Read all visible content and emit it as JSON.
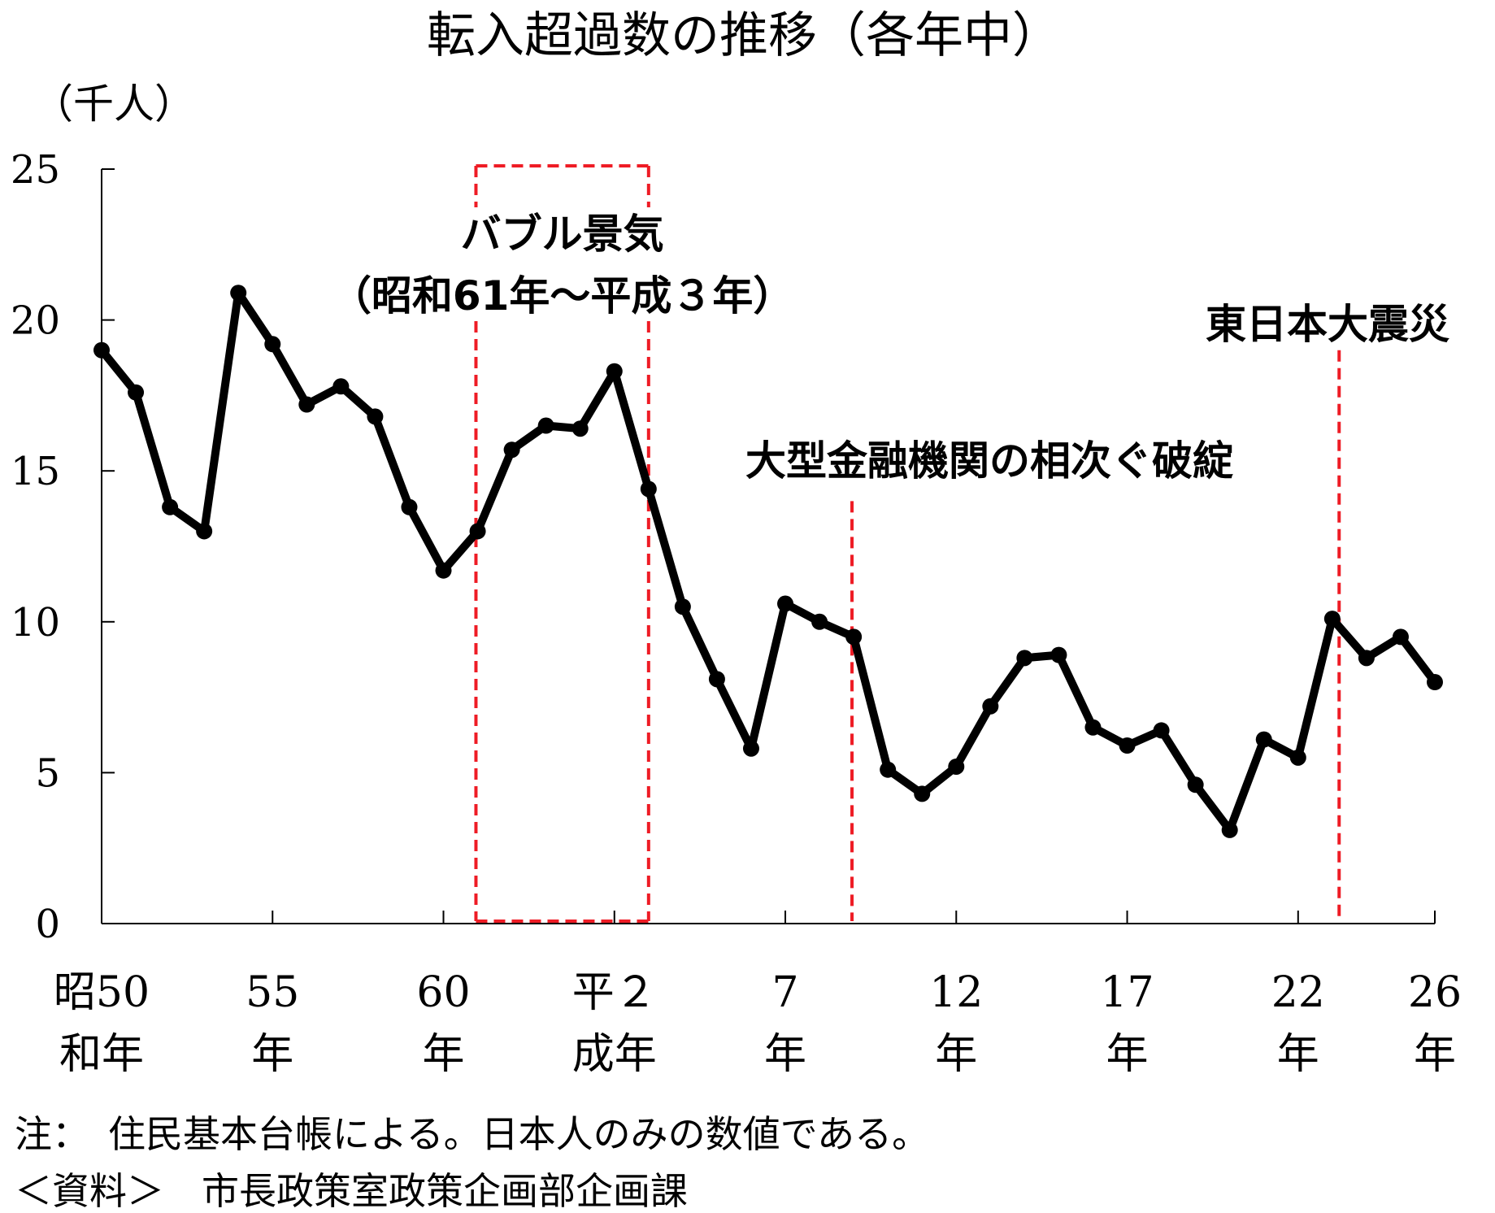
{
  "chart_data": {
    "type": "line",
    "title": "転入超過数の推移（各年中）",
    "ylabel": "（千人）",
    "ylim": [
      0,
      25
    ],
    "yticks": [
      "0",
      "5",
      "10",
      "15",
      "20",
      "25"
    ],
    "x_tick_labels": [
      {
        "x": 0,
        "line1": "昭50",
        "line2": "和年"
      },
      {
        "x": 5,
        "line1": "55",
        "line2": "年"
      },
      {
        "x": 10,
        "line1": "60",
        "line2": "年"
      },
      {
        "x": 15,
        "line1": "平２",
        "line2": "成年"
      },
      {
        "x": 20,
        "line1": "7",
        "line2": "年"
      },
      {
        "x": 25,
        "line1": "12",
        "line2": "年"
      },
      {
        "x": 30,
        "line1": "17",
        "line2": "年"
      },
      {
        "x": 35,
        "line1": "22",
        "line2": "年"
      },
      {
        "x": 39,
        "line1": "26",
        "line2": "年"
      }
    ],
    "grid": false,
    "series": [
      {
        "color": "#000000",
        "x": [
          0,
          1,
          2,
          3,
          4,
          5,
          6,
          7,
          8,
          9,
          10,
          11,
          12,
          13,
          14,
          15,
          16,
          17,
          18,
          19,
          20,
          21,
          22,
          23,
          24,
          25,
          26,
          27,
          28,
          29,
          30,
          31,
          32,
          33,
          34,
          35,
          36,
          37,
          38,
          39
        ],
        "values": [
          19.0,
          17.6,
          13.8,
          13.0,
          20.9,
          19.2,
          17.2,
          17.8,
          16.8,
          13.8,
          11.7,
          13.0,
          15.7,
          16.5,
          16.4,
          18.3,
          14.4,
          10.5,
          8.1,
          5.8,
          10.6,
          10.0,
          9.5,
          5.1,
          4.3,
          5.2,
          7.2,
          8.8,
          8.9,
          6.5,
          5.9,
          6.4,
          4.6,
          3.1,
          6.1,
          5.5,
          10.1,
          8.8,
          9.5,
          8.0
        ]
      }
    ],
    "annotations": {
      "bubble": {
        "x_start": 10.95,
        "x_end": 16.0,
        "color": "#ee1c25",
        "label_line1": "バブル景気",
        "label_line2": "（昭和61年～平成３年）"
      },
      "markers": [
        {
          "x": 21.95,
          "label": "大型金融機関の相次ぐ破綻",
          "top_value": 14.0,
          "color": "#ee1c25"
        },
        {
          "x": 36.2,
          "label": "東日本大震災",
          "top_value": 19.0,
          "color": "#ee1c25"
        }
      ]
    }
  },
  "notes": {
    "note": "注：　住民基本台帳による。日本人のみの数値である。",
    "source": "＜資料＞　市長政策室政策企画部企画課"
  }
}
